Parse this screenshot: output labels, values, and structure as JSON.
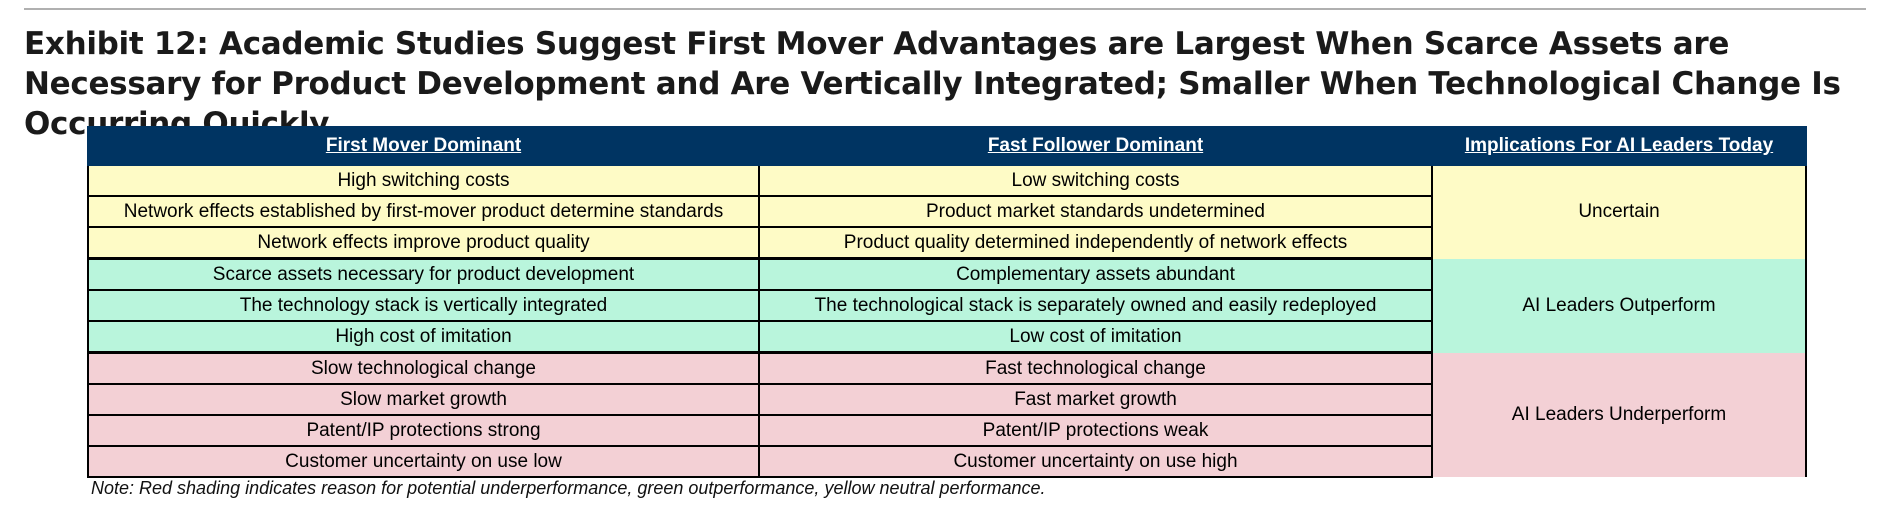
{
  "title": "Exhibit 12: Academic Studies Suggest First Mover Advantages are Largest When Scarce Assets are Necessary for Product Development and Are Vertically Integrated; Smaller When Technological Change Is Occurring Quickly",
  "table": {
    "headers": {
      "first_mover": "First Mover Dominant",
      "fast_follower": "Fast Follower Dominant",
      "implications": "Implications For AI Leaders Today"
    },
    "groups": [
      {
        "shade": "yellow",
        "color": "#fefbc6",
        "implication": "Uncertain",
        "rows": [
          {
            "first_mover": "High switching costs",
            "fast_follower": "Low switching costs"
          },
          {
            "first_mover": "Network effects established by first-mover product determine standards",
            "fast_follower": "Product market standards undetermined"
          },
          {
            "first_mover": "Network effects improve product quality",
            "fast_follower": "Product quality determined independently of network effects"
          }
        ]
      },
      {
        "shade": "green",
        "color": "#b9f5dc",
        "implication": "AI Leaders Outperform",
        "rows": [
          {
            "first_mover": "Scarce assets necessary for product development",
            "fast_follower": "Complementary assets abundant"
          },
          {
            "first_mover": "The technology stack is vertically integrated",
            "fast_follower": "The technological stack is separately owned and easily redeployed"
          },
          {
            "first_mover": "High cost of imitation",
            "fast_follower": "Low cost of imitation"
          }
        ]
      },
      {
        "shade": "red",
        "color": "#f3d0d5",
        "implication": "AI Leaders Underperform",
        "rows": [
          {
            "first_mover": "Slow technological change",
            "fast_follower": "Fast technological change"
          },
          {
            "first_mover": "Slow market growth",
            "fast_follower": "Fast market growth"
          },
          {
            "first_mover": "Patent/IP protections strong",
            "fast_follower": "Patent/IP protections weak"
          },
          {
            "first_mover": "Customer uncertainty on use low",
            "fast_follower": "Customer uncertainty on use high"
          }
        ]
      }
    ],
    "header_color": "#003462"
  },
  "note": "Note: Red shading indicates reason for potential underperformance, green outperformance, yellow neutral performance."
}
